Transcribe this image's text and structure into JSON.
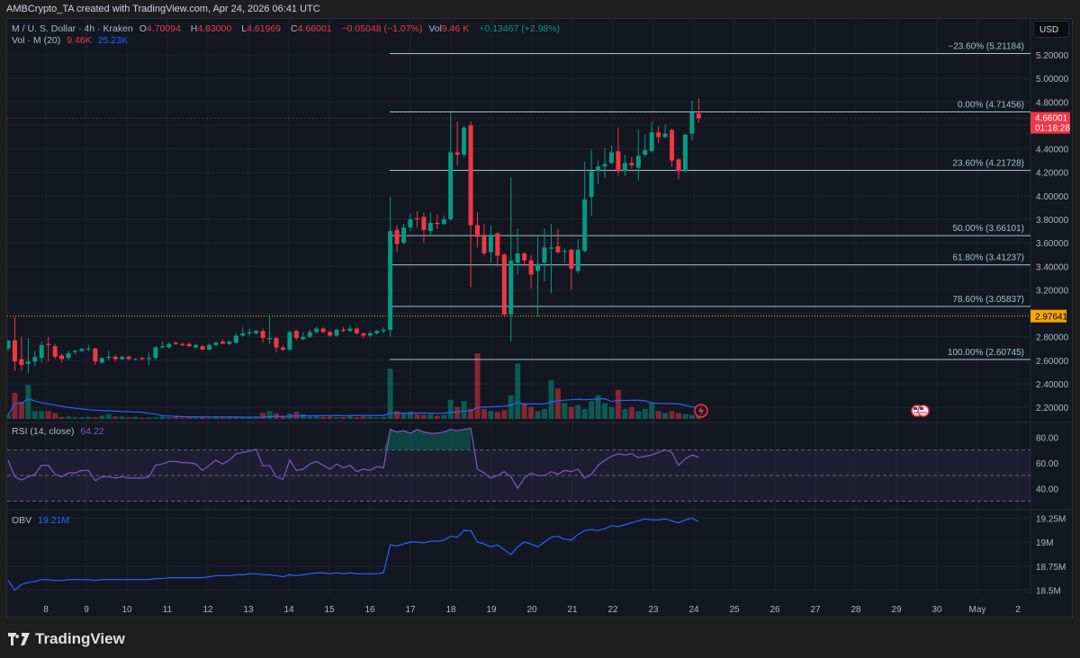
{
  "header": {
    "title": "AMBCrypto_TA created with TradingView.com, Apr 24, 2026 06:41 UTC"
  },
  "legend": {
    "symbol": "M / U. S. Dollar · 4h · Kraken",
    "o_label": "O",
    "open": "4.70094",
    "h_label": "H",
    "high": "4.83000",
    "l_label": "L",
    "low": "4.61969",
    "c_label": "C",
    "close": "4.66001",
    "change": "−0.05048 (−1.07%)",
    "vol_label": "Vol",
    "vol": "9.46 K",
    "vol_change": "+0.13467 (+2.98%)",
    "volume_indicator": "Vol · M (20)",
    "volume_value": "9.46K",
    "volume_ma": "25.23K",
    "rsi_label": "RSI (14, close)",
    "rsi_value": "64.22",
    "obv_label": "OBV",
    "obv_value": "19.21M"
  },
  "currency_button": "USD",
  "current_price": {
    "value": "4.66001",
    "countdown": "01:18:28"
  },
  "reference_price": {
    "value": "2.97641"
  },
  "colors": {
    "up": "#089981",
    "down": "#f23645",
    "fib": "#9cc3c9",
    "rsi": "#7e57c2",
    "obv": "#2962ff",
    "ref": "#f7a600",
    "bg": "#131722"
  },
  "icons": [
    "lightning-icon",
    "us-flag-event-icon",
    "tradingview-logo-icon"
  ],
  "brand": "TradingView",
  "chart_data": [
    {
      "type": "candlestick",
      "title": "M / U. S. Dollar · 4h · Kraken",
      "ylim": [
        2.1,
        5.3
      ],
      "price_ticks": [
        "5.20000",
        "5.00000",
        "4.80000",
        "4.40000",
        "4.20000",
        "4.00000",
        "3.80000",
        "3.60000",
        "3.40000",
        "3.20000",
        "2.80000",
        "2.60000",
        "2.40000",
        "2.20000"
      ],
      "x_ticks": [
        "8",
        "9",
        "10",
        "11",
        "12",
        "13",
        "14",
        "15",
        "16",
        "17",
        "18",
        "19",
        "20",
        "21",
        "22",
        "23",
        "24",
        "25",
        "26",
        "27",
        "28",
        "29",
        "30",
        "May",
        "2"
      ],
      "grid": true,
      "ohlc": [
        [
          2.7,
          2.75,
          2.68,
          2.77
        ],
        [
          2.77,
          2.97,
          2.51,
          2.59
        ],
        [
          2.61,
          2.8,
          2.51,
          2.56
        ],
        [
          2.57,
          2.79,
          2.49,
          2.59
        ],
        [
          2.59,
          2.68,
          2.55,
          2.63
        ],
        [
          2.62,
          2.76,
          2.58,
          2.73
        ],
        [
          2.74,
          2.8,
          2.59,
          2.73
        ],
        [
          2.72,
          2.74,
          2.61,
          2.63
        ],
        [
          2.64,
          2.66,
          2.58,
          2.61
        ],
        [
          2.62,
          2.68,
          2.6,
          2.66
        ],
        [
          2.67,
          2.69,
          2.65,
          2.68
        ],
        [
          2.68,
          2.7,
          2.67,
          2.7
        ],
        [
          2.7,
          2.73,
          2.68,
          2.7
        ],
        [
          2.7,
          2.71,
          2.56,
          2.59
        ],
        [
          2.58,
          2.62,
          2.57,
          2.62
        ],
        [
          2.62,
          2.68,
          2.6,
          2.63
        ],
        [
          2.63,
          2.65,
          2.59,
          2.61
        ],
        [
          2.61,
          2.64,
          2.6,
          2.63
        ],
        [
          2.63,
          2.64,
          2.6,
          2.61
        ],
        [
          2.61,
          2.62,
          2.6,
          2.61
        ],
        [
          2.62,
          2.63,
          2.6,
          2.61
        ],
        [
          2.61,
          2.67,
          2.56,
          2.62
        ],
        [
          2.62,
          2.72,
          2.6,
          2.71
        ],
        [
          2.71,
          2.76,
          2.7,
          2.72
        ],
        [
          2.71,
          2.75,
          2.7,
          2.74
        ],
        [
          2.75,
          2.76,
          2.73,
          2.74
        ],
        [
          2.74,
          2.75,
          2.72,
          2.73
        ],
        [
          2.74,
          2.75,
          2.71,
          2.72
        ],
        [
          2.71,
          2.74,
          2.7,
          2.73
        ],
        [
          2.72,
          2.73,
          2.69,
          2.69
        ],
        [
          2.69,
          2.74,
          2.69,
          2.73
        ],
        [
          2.73,
          2.76,
          2.72,
          2.75
        ],
        [
          2.76,
          2.78,
          2.74,
          2.74
        ],
        [
          2.74,
          2.77,
          2.73,
          2.76
        ],
        [
          2.75,
          2.83,
          2.74,
          2.81
        ],
        [
          2.81,
          2.88,
          2.8,
          2.83
        ],
        [
          2.83,
          2.87,
          2.81,
          2.84
        ],
        [
          2.83,
          2.86,
          2.82,
          2.85
        ],
        [
          2.85,
          2.87,
          2.75,
          2.79
        ],
        [
          2.78,
          2.99,
          2.74,
          2.79
        ],
        [
          2.79,
          2.8,
          2.67,
          2.71
        ],
        [
          2.71,
          2.73,
          2.68,
          2.69
        ],
        [
          2.69,
          2.85,
          2.68,
          2.84
        ],
        [
          2.85,
          2.86,
          2.77,
          2.79
        ],
        [
          2.78,
          2.84,
          2.77,
          2.8
        ],
        [
          2.8,
          2.86,
          2.79,
          2.84
        ],
        [
          2.84,
          2.89,
          2.83,
          2.87
        ],
        [
          2.87,
          2.88,
          2.83,
          2.84
        ],
        [
          2.84,
          2.85,
          2.8,
          2.81
        ],
        [
          2.81,
          2.87,
          2.8,
          2.86
        ],
        [
          2.86,
          2.88,
          2.84,
          2.85
        ],
        [
          2.85,
          2.9,
          2.84,
          2.87
        ],
        [
          2.87,
          2.88,
          2.82,
          2.83
        ],
        [
          2.83,
          2.84,
          2.79,
          2.81
        ],
        [
          2.81,
          2.85,
          2.8,
          2.83
        ],
        [
          2.83,
          2.86,
          2.82,
          2.85
        ],
        [
          2.85,
          2.88,
          2.83,
          2.86
        ],
        [
          2.86,
          3.99,
          2.8,
          3.7
        ],
        [
          3.71,
          3.75,
          3.52,
          3.59
        ],
        [
          3.6,
          3.76,
          3.59,
          3.73
        ],
        [
          3.73,
          3.85,
          3.7,
          3.8
        ],
        [
          3.81,
          3.87,
          3.73,
          3.8
        ],
        [
          3.82,
          3.86,
          3.6,
          3.71
        ],
        [
          3.7,
          3.86,
          3.66,
          3.77
        ],
        [
          3.77,
          3.84,
          3.72,
          3.76
        ],
        [
          3.76,
          3.83,
          3.75,
          3.8
        ],
        [
          3.8,
          4.71,
          3.79,
          4.37
        ],
        [
          4.37,
          4.63,
          4.26,
          4.35
        ],
        [
          4.35,
          4.6,
          4.33,
          4.58
        ],
        [
          4.6,
          4.63,
          3.22,
          3.75
        ],
        [
          3.75,
          3.86,
          3.56,
          3.65
        ],
        [
          3.66,
          3.76,
          3.49,
          3.51
        ],
        [
          3.52,
          3.75,
          3.43,
          3.67
        ],
        [
          3.68,
          3.69,
          3.4,
          3.49
        ],
        [
          3.5,
          3.51,
          2.98,
          2.99
        ],
        [
          2.99,
          4.16,
          2.76,
          3.45
        ],
        [
          3.43,
          3.72,
          3.33,
          3.51
        ],
        [
          3.51,
          3.52,
          3.4,
          3.45
        ],
        [
          3.45,
          3.49,
          3.21,
          3.33
        ],
        [
          3.36,
          3.65,
          2.97,
          3.42
        ],
        [
          3.43,
          3.72,
          3.27,
          3.56
        ],
        [
          3.55,
          3.76,
          3.17,
          3.56
        ],
        [
          3.57,
          3.72,
          3.51,
          3.52
        ],
        [
          3.53,
          3.55,
          3.43,
          3.53
        ],
        [
          3.54,
          3.55,
          3.2,
          3.38
        ],
        [
          3.36,
          3.63,
          3.34,
          3.54
        ],
        [
          3.53,
          4.29,
          3.52,
          3.97
        ],
        [
          3.99,
          4.39,
          3.83,
          4.21
        ],
        [
          4.21,
          4.3,
          4.1,
          4.25
        ],
        [
          4.25,
          4.41,
          4.15,
          4.27
        ],
        [
          4.28,
          4.43,
          4.27,
          4.37
        ],
        [
          4.38,
          4.58,
          4.17,
          4.21
        ],
        [
          4.21,
          4.35,
          4.17,
          4.28
        ],
        [
          4.28,
          4.33,
          4.23,
          4.26
        ],
        [
          4.24,
          4.56,
          4.13,
          4.34
        ],
        [
          4.35,
          4.52,
          4.33,
          4.39
        ],
        [
          4.38,
          4.63,
          4.37,
          4.54
        ],
        [
          4.54,
          4.59,
          4.45,
          4.5
        ],
        [
          4.5,
          4.61,
          4.49,
          4.53
        ],
        [
          4.56,
          4.57,
          4.25,
          4.3
        ],
        [
          4.31,
          4.32,
          4.14,
          4.21
        ],
        [
          4.21,
          4.53,
          4.2,
          4.52
        ],
        [
          4.53,
          4.81,
          4.47,
          4.71
        ],
        [
          4.70094,
          4.83,
          4.61969,
          4.66001
        ]
      ],
      "volume_k": [
        10,
        66,
        43,
        86,
        20,
        20,
        20,
        15,
        5,
        6,
        4,
        4,
        5,
        4,
        8,
        12,
        6,
        6,
        4,
        5,
        3,
        4,
        4,
        6,
        4,
        6,
        3,
        3,
        4,
        5,
        3,
        5,
        4,
        4,
        5,
        4,
        5,
        6,
        15,
        20,
        14,
        8,
        14,
        18,
        12,
        6,
        8,
        5,
        6,
        4,
        5,
        7,
        4,
        6,
        5,
        4,
        5,
        127,
        20,
        15,
        18,
        12,
        10,
        12,
        8,
        10,
        48,
        30,
        45,
        25,
        166,
        25,
        20,
        18,
        22,
        60,
        140,
        40,
        30,
        20,
        25,
        98,
        77,
        40,
        30,
        35,
        25,
        45,
        60,
        40,
        30,
        73,
        25,
        30,
        20,
        25,
        40,
        20,
        15,
        20,
        15,
        12,
        10,
        9.46
      ],
      "fibonacci": [
        {
          "label": "−23.60% (5.21184)",
          "price": 5.21184
        },
        {
          "label": "0.00% (4.71456)",
          "price": 4.71456
        },
        {
          "label": "23.60% (4.21728)",
          "price": 4.21728
        },
        {
          "label": "50.00% (3.66101)",
          "price": 3.66101
        },
        {
          "label": "61.80% (3.41237)",
          "price": 3.41237
        },
        {
          "label": "78.60% (3.05837)",
          "price": 3.05837
        },
        {
          "label": "100.00% (2.60745)",
          "price": 2.60745
        }
      ]
    },
    {
      "type": "line",
      "title": "RSI (14, close)",
      "ylim": [
        20,
        90
      ],
      "ticks": [
        "80.00",
        "60.00",
        "40.00"
      ],
      "bands": [
        30,
        50,
        70
      ],
      "values": [
        62,
        49,
        46.5,
        49,
        51,
        58,
        58,
        51,
        49,
        52,
        52,
        54,
        54,
        46,
        49,
        49,
        48,
        49,
        48,
        48,
        48,
        49,
        58,
        59,
        61,
        61,
        60,
        60,
        59,
        54,
        58,
        62,
        59,
        62,
        67,
        68,
        69,
        70.5,
        57.5,
        58,
        49,
        47,
        62,
        54,
        55,
        59,
        61,
        58,
        55,
        59,
        56,
        58,
        53,
        55,
        54,
        57,
        56,
        86,
        84,
        85,
        83,
        86,
        84,
        83,
        83,
        84,
        86,
        85,
        86,
        87,
        55,
        52,
        48,
        50,
        53,
        49,
        40,
        48,
        52,
        50,
        50,
        53,
        51,
        54,
        53,
        55,
        48,
        51,
        58,
        62,
        65,
        67,
        66,
        67,
        64,
        65,
        66,
        68,
        70,
        68,
        58,
        63,
        66,
        64.22
      ]
    },
    {
      "type": "line",
      "title": "OBV",
      "ticks": [
        "19.25M",
        "19M",
        "18.75M",
        "18.5M"
      ],
      "values_m": [
        18.6,
        18.5,
        18.56,
        18.58,
        18.59,
        18.61,
        18.61,
        18.6,
        18.6,
        18.61,
        18.61,
        18.61,
        18.61,
        18.6,
        18.61,
        18.61,
        18.61,
        18.61,
        18.61,
        18.61,
        18.61,
        18.61,
        18.62,
        18.62,
        18.63,
        18.63,
        18.63,
        18.63,
        18.63,
        18.63,
        18.64,
        18.65,
        18.65,
        18.65,
        18.66,
        18.66,
        18.67,
        18.67,
        18.66,
        18.66,
        18.65,
        18.64,
        18.66,
        18.65,
        18.66,
        18.67,
        18.68,
        18.68,
        18.67,
        18.68,
        18.67,
        18.68,
        18.67,
        18.67,
        18.67,
        18.67,
        18.68,
        18.97,
        18.96,
        18.98,
        19.0,
        19.0,
        18.99,
        19.01,
        19.01,
        19.02,
        19.06,
        19.05,
        19.12,
        19.12,
        19.0,
        18.98,
        18.95,
        18.97,
        18.92,
        18.87,
        18.95,
        19.0,
        18.98,
        18.95,
        19.0,
        19.05,
        19.06,
        19.03,
        19.02,
        19.08,
        19.12,
        19.13,
        19.12,
        19.14,
        19.17,
        19.16,
        19.18,
        19.2,
        19.22,
        19.24,
        19.23,
        19.23,
        19.24,
        19.22,
        19.2,
        19.23,
        19.25,
        19.21
      ]
    }
  ]
}
